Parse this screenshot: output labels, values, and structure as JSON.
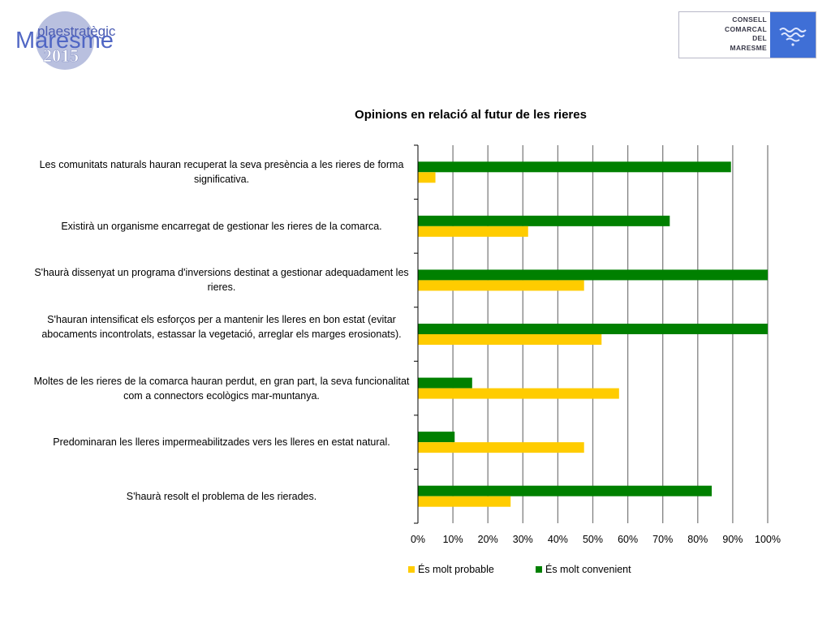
{
  "logo_left": {
    "line1": "plaestratègic",
    "line2": "Maresme",
    "line3": "2015"
  },
  "logo_right": {
    "lines": [
      "CONSELL",
      "COMARCAL",
      "DEL",
      "MARESME"
    ]
  },
  "colors": {
    "probable": "#FFCC00",
    "convenient": "#008000",
    "axis": "#808080",
    "logo_blue": "#3f6fd6"
  },
  "chart_data": {
    "type": "bar",
    "orientation": "horizontal",
    "title": "Opinions en relació al futur de les rieres",
    "categories": [
      "Les comunitats naturals hauran recuperat la seva presència a les rieres de forma significativa.",
      "Existirà un organisme encarregat de gestionar les rieres de la comarca.",
      "S'haurà dissenyat un programa d'inversions destinat a gestionar adequadament les rieres.",
      "S'hauran intensificat els esforços per a mantenir les lleres en bon estat (evitar abocaments incontrolats, estassar la vegetació, arreglar els marges erosionats).",
      "Moltes de les rieres de la comarca hauran perdut, en gran part, la seva funcionalitat com a connectors ecològics mar-muntanya.",
      "Predominaran les lleres impermeabilitzades vers les lleres en estat natural.",
      "S'haurà resolt el problema de les rierades."
    ],
    "series": [
      {
        "name": "És molt probable",
        "values": [
          5,
          31.5,
          47.5,
          52.5,
          57.5,
          47.5,
          26.5
        ]
      },
      {
        "name": "És molt convenient",
        "values": [
          89.5,
          72,
          100,
          100,
          15.5,
          10.5,
          84
        ]
      }
    ],
    "xlim": [
      0,
      100
    ],
    "xticks": [
      "0%",
      "10%",
      "20%",
      "30%",
      "40%",
      "50%",
      "60%",
      "70%",
      "80%",
      "90%",
      "100%"
    ],
    "grid": true,
    "legend": "bottom"
  }
}
